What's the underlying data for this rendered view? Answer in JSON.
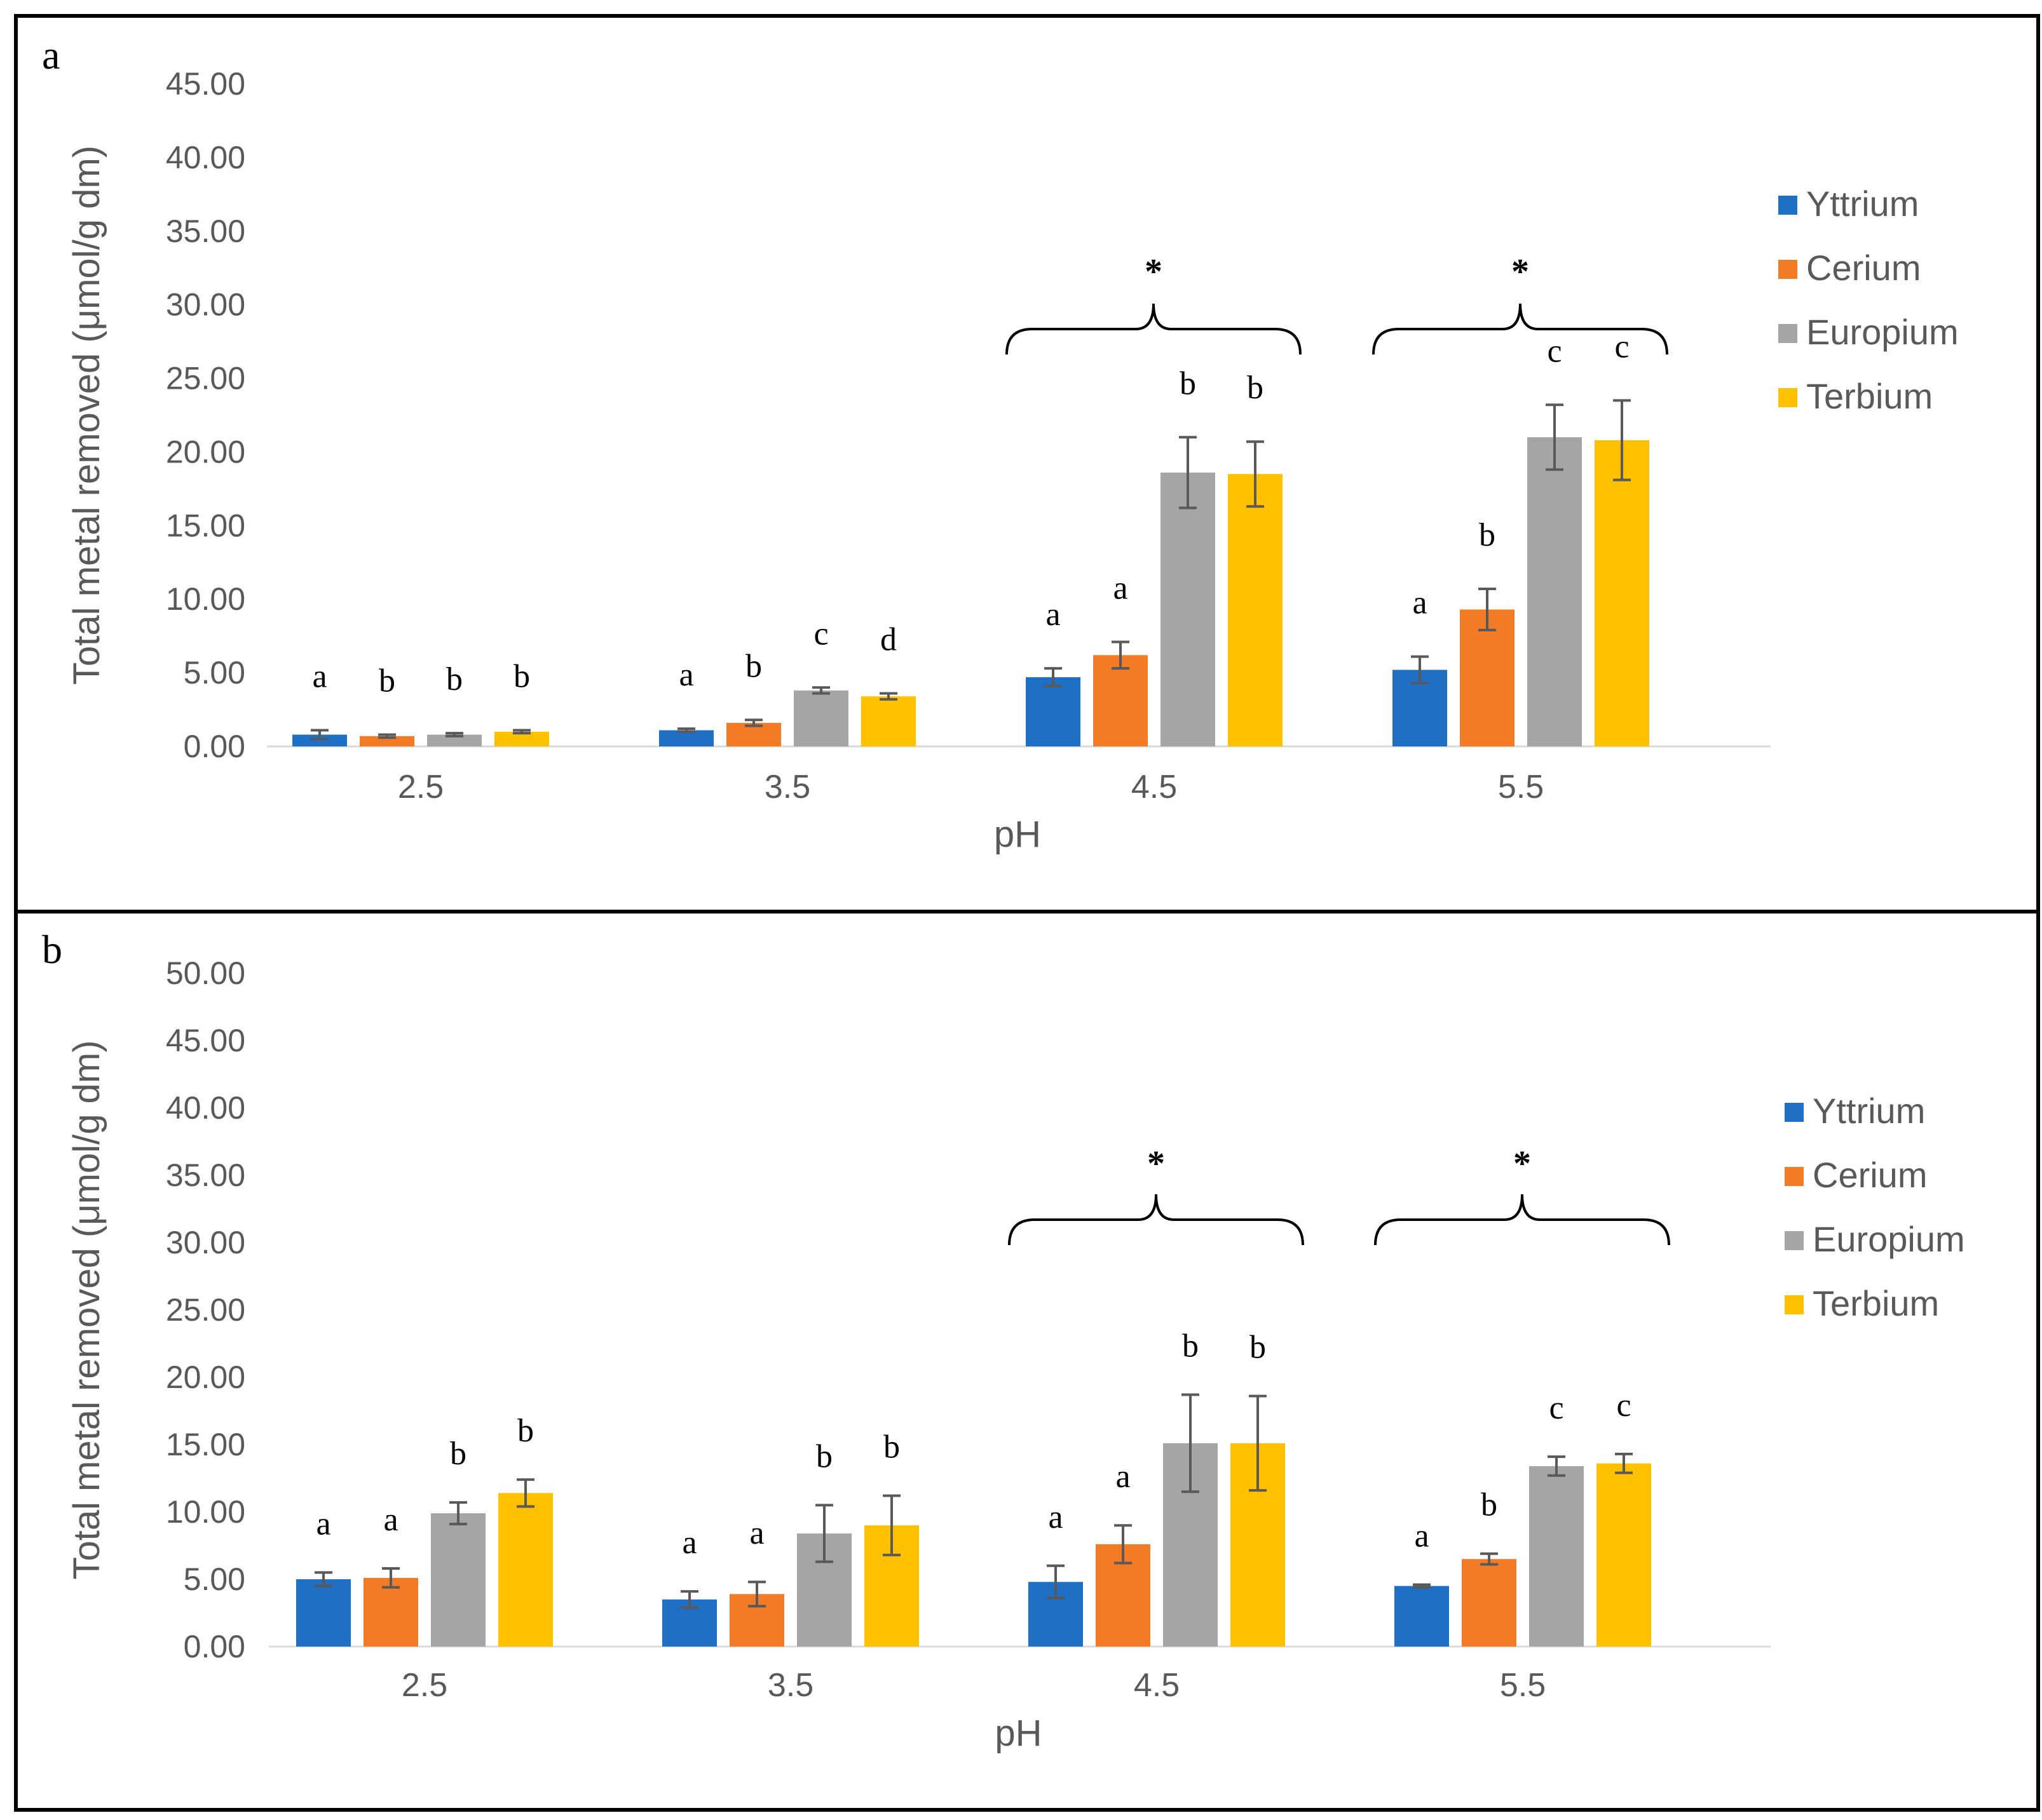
{
  "chart_data": [
    {
      "panel_label": "a",
      "type": "bar",
      "xlabel": "pH",
      "ylabel": "Total metal removed (μmol/g dm)",
      "categories": [
        "2.5",
        "3.5",
        "4.5",
        "5.5"
      ],
      "ylim": [
        0,
        45
      ],
      "yticks": [
        "0.00",
        "5.00",
        "10.00",
        "15.00",
        "20.00",
        "25.00",
        "30.00",
        "35.00",
        "40.00",
        "45.00"
      ],
      "series": [
        {
          "name": "Yttrium",
          "color": "#1F6FC5",
          "values": [
            0.8,
            1.1,
            4.7,
            5.2
          ],
          "errors": [
            0.3,
            0.1,
            0.6,
            0.9
          ]
        },
        {
          "name": "Cerium",
          "color": "#F47B26",
          "values": [
            0.7,
            1.6,
            6.2,
            9.3
          ],
          "errors": [
            0.1,
            0.2,
            0.9,
            1.4
          ]
        },
        {
          "name": "Europium",
          "color": "#A5A5A5",
          "values": [
            0.8,
            3.8,
            18.6,
            21.0
          ],
          "errors": [
            0.1,
            0.2,
            2.4,
            2.2
          ]
        },
        {
          "name": "Terbium",
          "color": "#FFC000",
          "values": [
            1.0,
            3.4,
            18.5,
            20.8
          ],
          "errors": [
            0.1,
            0.2,
            2.2,
            2.7
          ]
        }
      ],
      "letters": [
        [
          "a",
          "b",
          "b",
          "b"
        ],
        [
          "a",
          "b",
          "c",
          "d"
        ],
        [
          "a",
          "a",
          "b",
          "b"
        ],
        [
          "a",
          "b",
          "c",
          "c"
        ]
      ],
      "significance": [
        {
          "from": "4.5",
          "label": "*"
        },
        {
          "from": "5.5",
          "label": "*"
        }
      ],
      "legend_position": "right"
    },
    {
      "panel_label": "b",
      "type": "bar",
      "xlabel": "pH",
      "ylabel": "Total metal removed (μmol/g dm)",
      "categories": [
        "2.5",
        "3.5",
        "4.5",
        "5.5"
      ],
      "ylim": [
        0,
        50
      ],
      "yticks": [
        "0.00",
        "5.00",
        "10.00",
        "15.00",
        "20.00",
        "25.00",
        "30.00",
        "35.00",
        "40.00",
        "45.00",
        "50.00"
      ],
      "series": [
        {
          "name": "Yttrium",
          "color": "#1F6FC5",
          "values": [
            5.0,
            3.5,
            4.8,
            4.5
          ],
          "errors": [
            0.5,
            0.6,
            1.2,
            0.1
          ]
        },
        {
          "name": "Cerium",
          "color": "#F47B26",
          "values": [
            5.1,
            3.9,
            7.6,
            6.5
          ],
          "errors": [
            0.7,
            0.9,
            1.4,
            0.4
          ]
        },
        {
          "name": "Europium",
          "color": "#A5A5A5",
          "values": [
            9.9,
            8.4,
            15.1,
            13.4
          ],
          "errors": [
            0.8,
            2.1,
            3.6,
            0.7
          ]
        },
        {
          "name": "Terbium",
          "color": "#FFC000",
          "values": [
            11.4,
            9.0,
            15.1,
            13.6
          ],
          "errors": [
            1.0,
            2.2,
            3.5,
            0.7
          ]
        }
      ],
      "letters": [
        [
          "a",
          "a",
          "b",
          "b"
        ],
        [
          "a",
          "a",
          "b",
          "b"
        ],
        [
          "a",
          "a",
          "b",
          "b"
        ],
        [
          "a",
          "b",
          "c",
          "c"
        ]
      ],
      "significance": [
        {
          "from": "4.5",
          "label": "*"
        },
        {
          "from": "5.5",
          "label": "*"
        }
      ],
      "legend_position": "right"
    }
  ]
}
